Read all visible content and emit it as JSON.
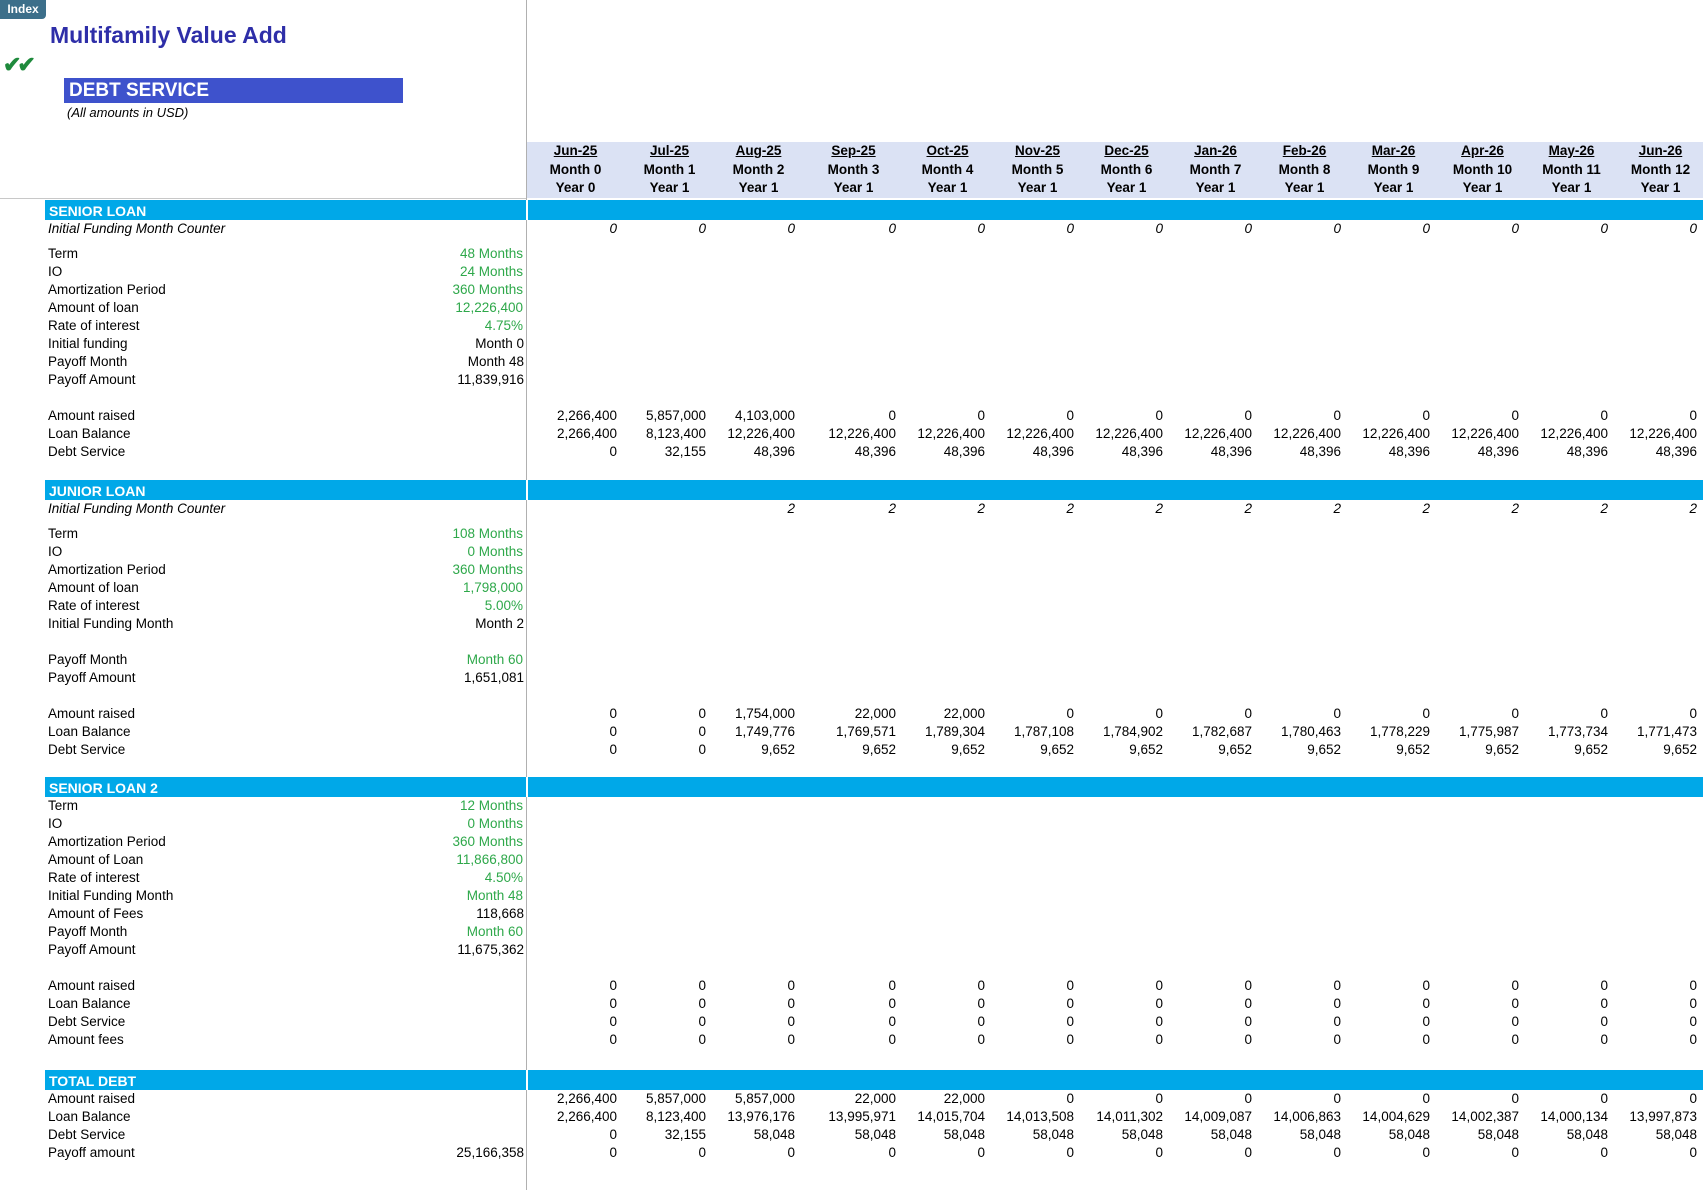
{
  "index_label": "Index",
  "app_title": "Multifamily Value Add",
  "check_glyph": "✔✔",
  "section_title": "DEBT SERVICE",
  "subtitle": "(All amounts in USD)",
  "columns": [
    {
      "date": "Jun-25",
      "month": "Month 0",
      "year": "Year 0"
    },
    {
      "date": "Jul-25",
      "month": "Month 1",
      "year": "Year 1"
    },
    {
      "date": "Aug-25",
      "month": "Month 2",
      "year": "Year 1"
    },
    {
      "date": "Sep-25",
      "month": "Month 3",
      "year": "Year 1"
    },
    {
      "date": "Oct-25",
      "month": "Month 4",
      "year": "Year 1"
    },
    {
      "date": "Nov-25",
      "month": "Month 5",
      "year": "Year 1"
    },
    {
      "date": "Dec-25",
      "month": "Month 6",
      "year": "Year 1"
    },
    {
      "date": "Jan-26",
      "month": "Month 7",
      "year": "Year 1"
    },
    {
      "date": "Feb-26",
      "month": "Month 8",
      "year": "Year 1"
    },
    {
      "date": "Mar-26",
      "month": "Month 9",
      "year": "Year 1"
    },
    {
      "date": "Apr-26",
      "month": "Month 10",
      "year": "Year 1"
    },
    {
      "date": "May-26",
      "month": "Month 11",
      "year": "Year 1"
    },
    {
      "date": "Jun-26",
      "month": "Month 12",
      "year": "Year 1"
    }
  ],
  "bands": [
    "SENIOR LOAN",
    "JUNIOR LOAN",
    "SENIOR LOAN 2",
    "TOTAL DEBT"
  ],
  "rows": [
    {
      "label": "Initial Funding Month Counter",
      "italic": true,
      "values": [
        "0",
        "0",
        "0",
        "0",
        "0",
        "0",
        "0",
        "0",
        "0",
        "0",
        "0",
        "0",
        "0"
      ]
    },
    {
      "label": "Term",
      "input": "48 Months",
      "green": true
    },
    {
      "label": "IO",
      "input": "24 Months",
      "green": true
    },
    {
      "label": "Amortization Period",
      "input": "360 Months",
      "green": true
    },
    {
      "label": "Amount of loan",
      "input": "12,226,400",
      "green": true
    },
    {
      "label": "Rate of interest",
      "input": "4.75%",
      "green": true
    },
    {
      "label": "Initial funding",
      "input": "Month 0"
    },
    {
      "label": "Payoff Month",
      "input": "Month 48"
    },
    {
      "label": "Payoff Amount",
      "input": "11,839,916"
    },
    {
      "label": "Amount raised",
      "values": [
        "2,266,400",
        "5,857,000",
        "4,103,000",
        "0",
        "0",
        "0",
        "0",
        "0",
        "0",
        "0",
        "0",
        "0",
        "0"
      ]
    },
    {
      "label": "Loan Balance",
      "values": [
        "2,266,400",
        "8,123,400",
        "12,226,400",
        "12,226,400",
        "12,226,400",
        "12,226,400",
        "12,226,400",
        "12,226,400",
        "12,226,400",
        "12,226,400",
        "12,226,400",
        "12,226,400",
        "12,226,400"
      ]
    },
    {
      "label": "Debt Service",
      "values": [
        "0",
        "32,155",
        "48,396",
        "48,396",
        "48,396",
        "48,396",
        "48,396",
        "48,396",
        "48,396",
        "48,396",
        "48,396",
        "48,396",
        "48,396"
      ]
    },
    {
      "label": "Initial Funding Month Counter",
      "italic": true,
      "values": [
        "",
        "",
        "2",
        "2",
        "2",
        "2",
        "2",
        "2",
        "2",
        "2",
        "2",
        "2",
        "2"
      ]
    },
    {
      "label": "Term",
      "input": "108 Months",
      "green": true
    },
    {
      "label": "IO",
      "input": "0 Months",
      "green": true
    },
    {
      "label": "Amortization Period",
      "input": "360 Months",
      "green": true
    },
    {
      "label": "Amount of loan",
      "input": "1,798,000",
      "green": true
    },
    {
      "label": "Rate of interest",
      "input": "5.00%",
      "green": true
    },
    {
      "label": "Initial Funding Month",
      "input": "Month 2"
    },
    {
      "label": "Payoff Month",
      "input": "Month 60",
      "green": true
    },
    {
      "label": "Payoff Amount",
      "input": "1,651,081"
    },
    {
      "label": "Amount raised",
      "values": [
        "0",
        "0",
        "1,754,000",
        "22,000",
        "22,000",
        "0",
        "0",
        "0",
        "0",
        "0",
        "0",
        "0",
        "0"
      ]
    },
    {
      "label": "Loan Balance",
      "values": [
        "0",
        "0",
        "1,749,776",
        "1,769,571",
        "1,789,304",
        "1,787,108",
        "1,784,902",
        "1,782,687",
        "1,780,463",
        "1,778,229",
        "1,775,987",
        "1,773,734",
        "1,771,473"
      ]
    },
    {
      "label": "Debt Service",
      "values": [
        "0",
        "0",
        "9,652",
        "9,652",
        "9,652",
        "9,652",
        "9,652",
        "9,652",
        "9,652",
        "9,652",
        "9,652",
        "9,652",
        "9,652"
      ]
    },
    {
      "label": "Term",
      "input": "12 Months",
      "green": true
    },
    {
      "label": "IO",
      "input": "0 Months",
      "green": true
    },
    {
      "label": "Amortization Period",
      "input": "360 Months",
      "green": true
    },
    {
      "label": "Amount of Loan",
      "input": "11,866,800",
      "green": true
    },
    {
      "label": "Rate of interest",
      "input": "4.50%",
      "green": true
    },
    {
      "label": "Initial Funding Month",
      "input": "Month 48",
      "green": true
    },
    {
      "label": "Amount of Fees",
      "input": "118,668"
    },
    {
      "label": "Payoff Month",
      "input": "Month 60",
      "green": true
    },
    {
      "label": "Payoff Amount",
      "input": "11,675,362"
    },
    {
      "label": "Amount raised",
      "values": [
        "0",
        "0",
        "0",
        "0",
        "0",
        "0",
        "0",
        "0",
        "0",
        "0",
        "0",
        "0",
        "0"
      ]
    },
    {
      "label": "Loan Balance",
      "values": [
        "0",
        "0",
        "0",
        "0",
        "0",
        "0",
        "0",
        "0",
        "0",
        "0",
        "0",
        "0",
        "0"
      ]
    },
    {
      "label": "Debt Service",
      "values": [
        "0",
        "0",
        "0",
        "0",
        "0",
        "0",
        "0",
        "0",
        "0",
        "0",
        "0",
        "0",
        "0"
      ]
    },
    {
      "label": "Amount fees",
      "values": [
        "0",
        "0",
        "0",
        "0",
        "0",
        "0",
        "0",
        "0",
        "0",
        "0",
        "0",
        "0",
        "0"
      ]
    },
    {
      "label": "Amount raised",
      "values": [
        "2,266,400",
        "5,857,000",
        "5,857,000",
        "22,000",
        "22,000",
        "0",
        "0",
        "0",
        "0",
        "0",
        "0",
        "0",
        "0"
      ]
    },
    {
      "label": "Loan Balance",
      "values": [
        "2,266,400",
        "8,123,400",
        "13,976,176",
        "13,995,971",
        "14,015,704",
        "14,013,508",
        "14,011,302",
        "14,009,087",
        "14,006,863",
        "14,004,629",
        "14,002,387",
        "14,000,134",
        "13,997,873"
      ]
    },
    {
      "label": "Debt Service",
      "values": [
        "0",
        "32,155",
        "58,048",
        "58,048",
        "58,048",
        "58,048",
        "58,048",
        "58,048",
        "58,048",
        "58,048",
        "58,048",
        "58,048",
        "58,048"
      ]
    },
    {
      "label": "Payoff amount",
      "input": "25,166,358",
      "values": [
        "0",
        "0",
        "0",
        "0",
        "0",
        "0",
        "0",
        "0",
        "0",
        "0",
        "0",
        "0",
        "0"
      ]
    }
  ]
}
